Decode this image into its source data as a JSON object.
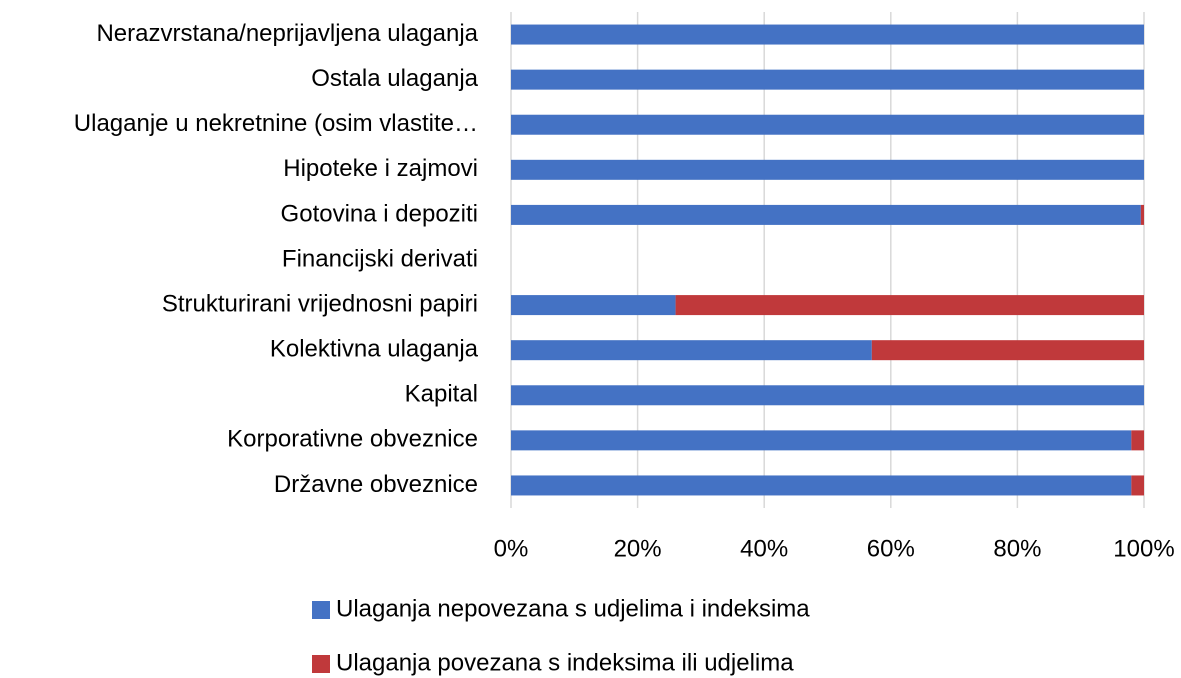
{
  "chart_data": {
    "type": "stacked-barh",
    "categories": [
      "Nerazvrstana/neprijavljena ulaganja",
      "Ostala ulaganja",
      "Ulaganje u nekretnine (osim vlastite…",
      "Hipoteke i zajmovi",
      "Gotovina i depoziti",
      "Financijski derivati",
      "Strukturirani vrijednosni papiri",
      "Kolektivna ulaganja",
      "Kapital",
      "Korporativne obveznice",
      "Državne obveznice"
    ],
    "series": [
      {
        "name": "Ulaganja nepovezana s udjelima i indeksima",
        "color": "#4472c4",
        "values": [
          100,
          100,
          100,
          100,
          99.5,
          null,
          26,
          57,
          100,
          98,
          98
        ]
      },
      {
        "name": "Ulaganja povezana s indeksima ili udjelima",
        "color": "#c0393b",
        "values": [
          0,
          0,
          0,
          0,
          0.5,
          null,
          74,
          43,
          0,
          2,
          2
        ]
      }
    ],
    "xlim": [
      0,
      100
    ],
    "xticks": [
      {
        "value": 0,
        "label": "0%"
      },
      {
        "value": 20,
        "label": "20%"
      },
      {
        "value": 40,
        "label": "40%"
      },
      {
        "value": 60,
        "label": "60%"
      },
      {
        "value": 80,
        "label": "80%"
      },
      {
        "value": 100,
        "label": "100%"
      }
    ],
    "grid": true,
    "legend": "bottom"
  }
}
